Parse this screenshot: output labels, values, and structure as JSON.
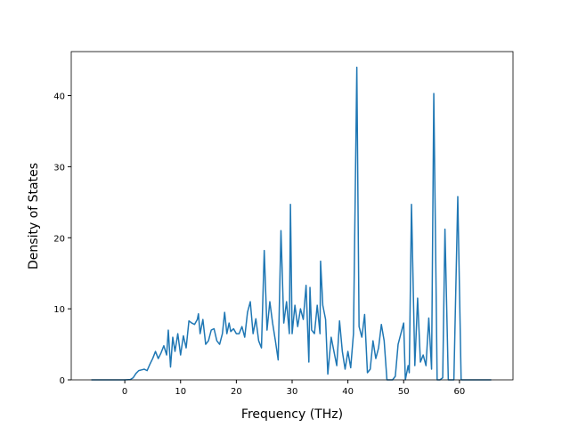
{
  "chart_data": {
    "type": "line",
    "x_label": "Frequency (THz)",
    "y_label": "Density of States",
    "x": [
      -6,
      -3,
      0,
      1,
      1.5,
      2,
      2.5,
      3,
      3.5,
      4,
      4.5,
      5,
      5.5,
      6,
      6.5,
      7,
      7.5,
      7.8,
      8.2,
      8.6,
      9,
      9.5,
      10,
      10.5,
      11,
      11.5,
      12,
      12.5,
      13,
      13.2,
      13.5,
      14,
      14.5,
      15,
      15.5,
      16,
      16.5,
      17,
      17.5,
      17.9,
      18.3,
      18.7,
      19,
      19.5,
      20,
      20.5,
      21,
      21.5,
      22,
      22.5,
      23,
      23.5,
      24,
      24.5,
      25,
      25.5,
      26,
      26.5,
      27,
      27.5,
      28,
      28.5,
      29,
      29.5,
      29.7,
      30,
      30.5,
      31,
      31.5,
      32,
      32.5,
      33,
      33.2,
      33.5,
      34,
      34.5,
      35,
      35.1,
      35.5,
      36,
      36.4,
      37,
      37.5,
      38,
      38.5,
      39,
      39.5,
      40,
      40.5,
      41,
      41.6,
      42,
      42.5,
      43,
      43.5,
      44,
      44.5,
      45,
      45.5,
      46,
      46.5,
      47,
      48,
      48.5,
      49,
      49.5,
      50,
      50.3,
      50.8,
      51,
      51.4,
      52,
      52.5,
      53,
      53.5,
      54,
      54.5,
      55,
      55.4,
      56,
      56.5,
      57,
      57.4,
      58,
      58.5,
      59,
      59.7,
      60.3,
      65.7
    ],
    "series": [
      {
        "color": "#1f77b4",
        "values": [
          0,
          0,
          0,
          0.05,
          0.3,
          0.9,
          1.3,
          1.4,
          1.5,
          1.3,
          2.2,
          3,
          4,
          3,
          3.8,
          4.8,
          3.5,
          7,
          1.8,
          6,
          4,
          6.5,
          3.5,
          6.2,
          4.5,
          8.3,
          8,
          7.8,
          8.5,
          9.3,
          6.5,
          8.5,
          5,
          5.5,
          7,
          7.2,
          5.5,
          5,
          6.5,
          9.5,
          6.5,
          8,
          6.8,
          7.2,
          6.5,
          6.5,
          7.5,
          6,
          9.5,
          11,
          6.5,
          8.6,
          5.5,
          4.5,
          18.2,
          7,
          11,
          8,
          5.5,
          2.8,
          21,
          8,
          11,
          6.5,
          24.7,
          6.5,
          10.5,
          7.5,
          10,
          8.5,
          13.3,
          2.5,
          13,
          7,
          6.5,
          10.5,
          6.5,
          16.7,
          10.5,
          8.5,
          0.8,
          6,
          4,
          2,
          8.3,
          4,
          1.5,
          4,
          1.7,
          6.5,
          44,
          7.5,
          6,
          9.2,
          1,
          1.5,
          5.5,
          3,
          4.5,
          7.8,
          5.5,
          0,
          0,
          0.5,
          5,
          6.5,
          8,
          0,
          2,
          1,
          24.7,
          2,
          11.5,
          2.5,
          3.5,
          2,
          8.7,
          1.5,
          40.3,
          0,
          0,
          0.3,
          21.2,
          0,
          0,
          0,
          25.8,
          0,
          0
        ]
      }
    ],
    "xlim": [
      -9.6,
      69.6
    ],
    "ylim": [
      0,
      46.2
    ],
    "xticks": [
      0,
      10,
      20,
      30,
      40,
      50,
      60
    ],
    "yticks": [
      0,
      10,
      20,
      30,
      40
    ]
  }
}
